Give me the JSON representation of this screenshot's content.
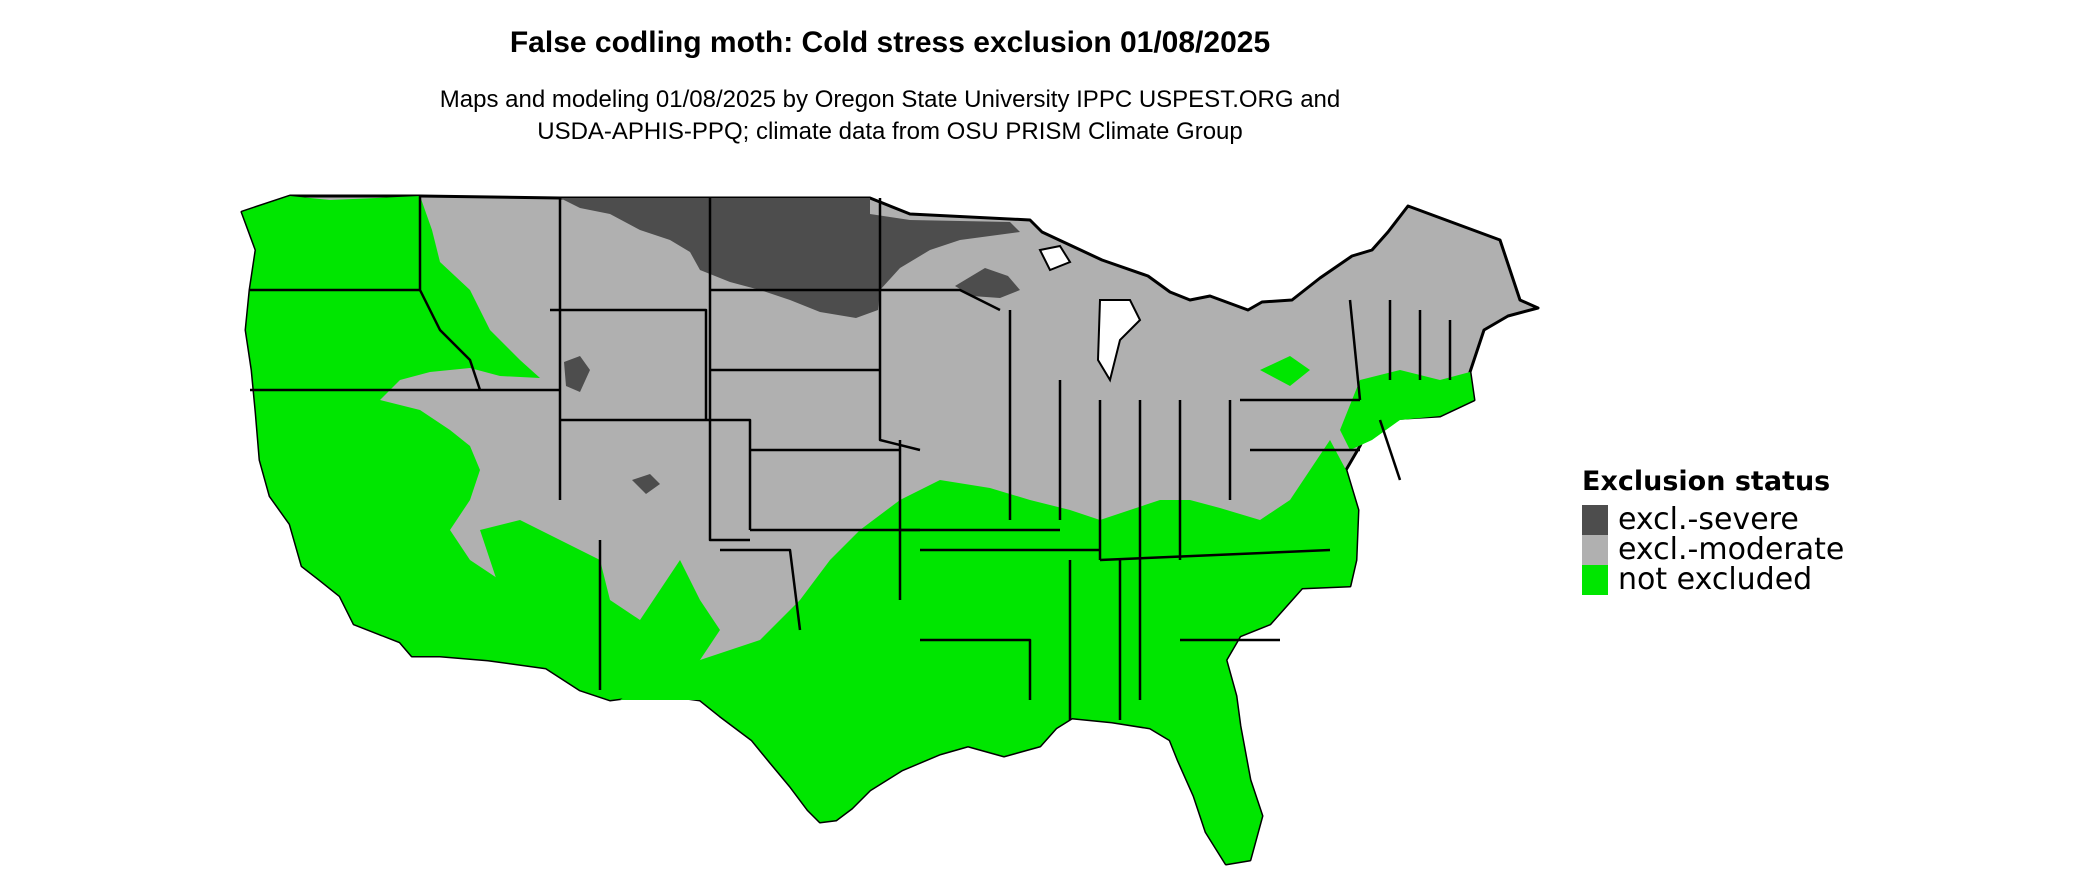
{
  "title": "False codling moth: Cold stress exclusion 01/08/2025",
  "subtitle_lines": [
    "Maps and modeling 01/08/2025 by Oregon State University IPPC USPEST.ORG and",
    "USDA-APHIS-PPQ; climate data from OSU PRISM Climate Group"
  ],
  "legend": {
    "title": "Exclusion status",
    "items": [
      {
        "label": "excl.-severe",
        "color": "#4d4d4d"
      },
      {
        "label": "excl.-moderate",
        "color": "#b0b0b0"
      },
      {
        "label": "not excluded",
        "color": "#00e600"
      }
    ]
  },
  "colors": {
    "severe": "#4d4d4d",
    "moderate": "#b0b0b0",
    "not_excluded": "#00e600",
    "border": "#000000"
  }
}
